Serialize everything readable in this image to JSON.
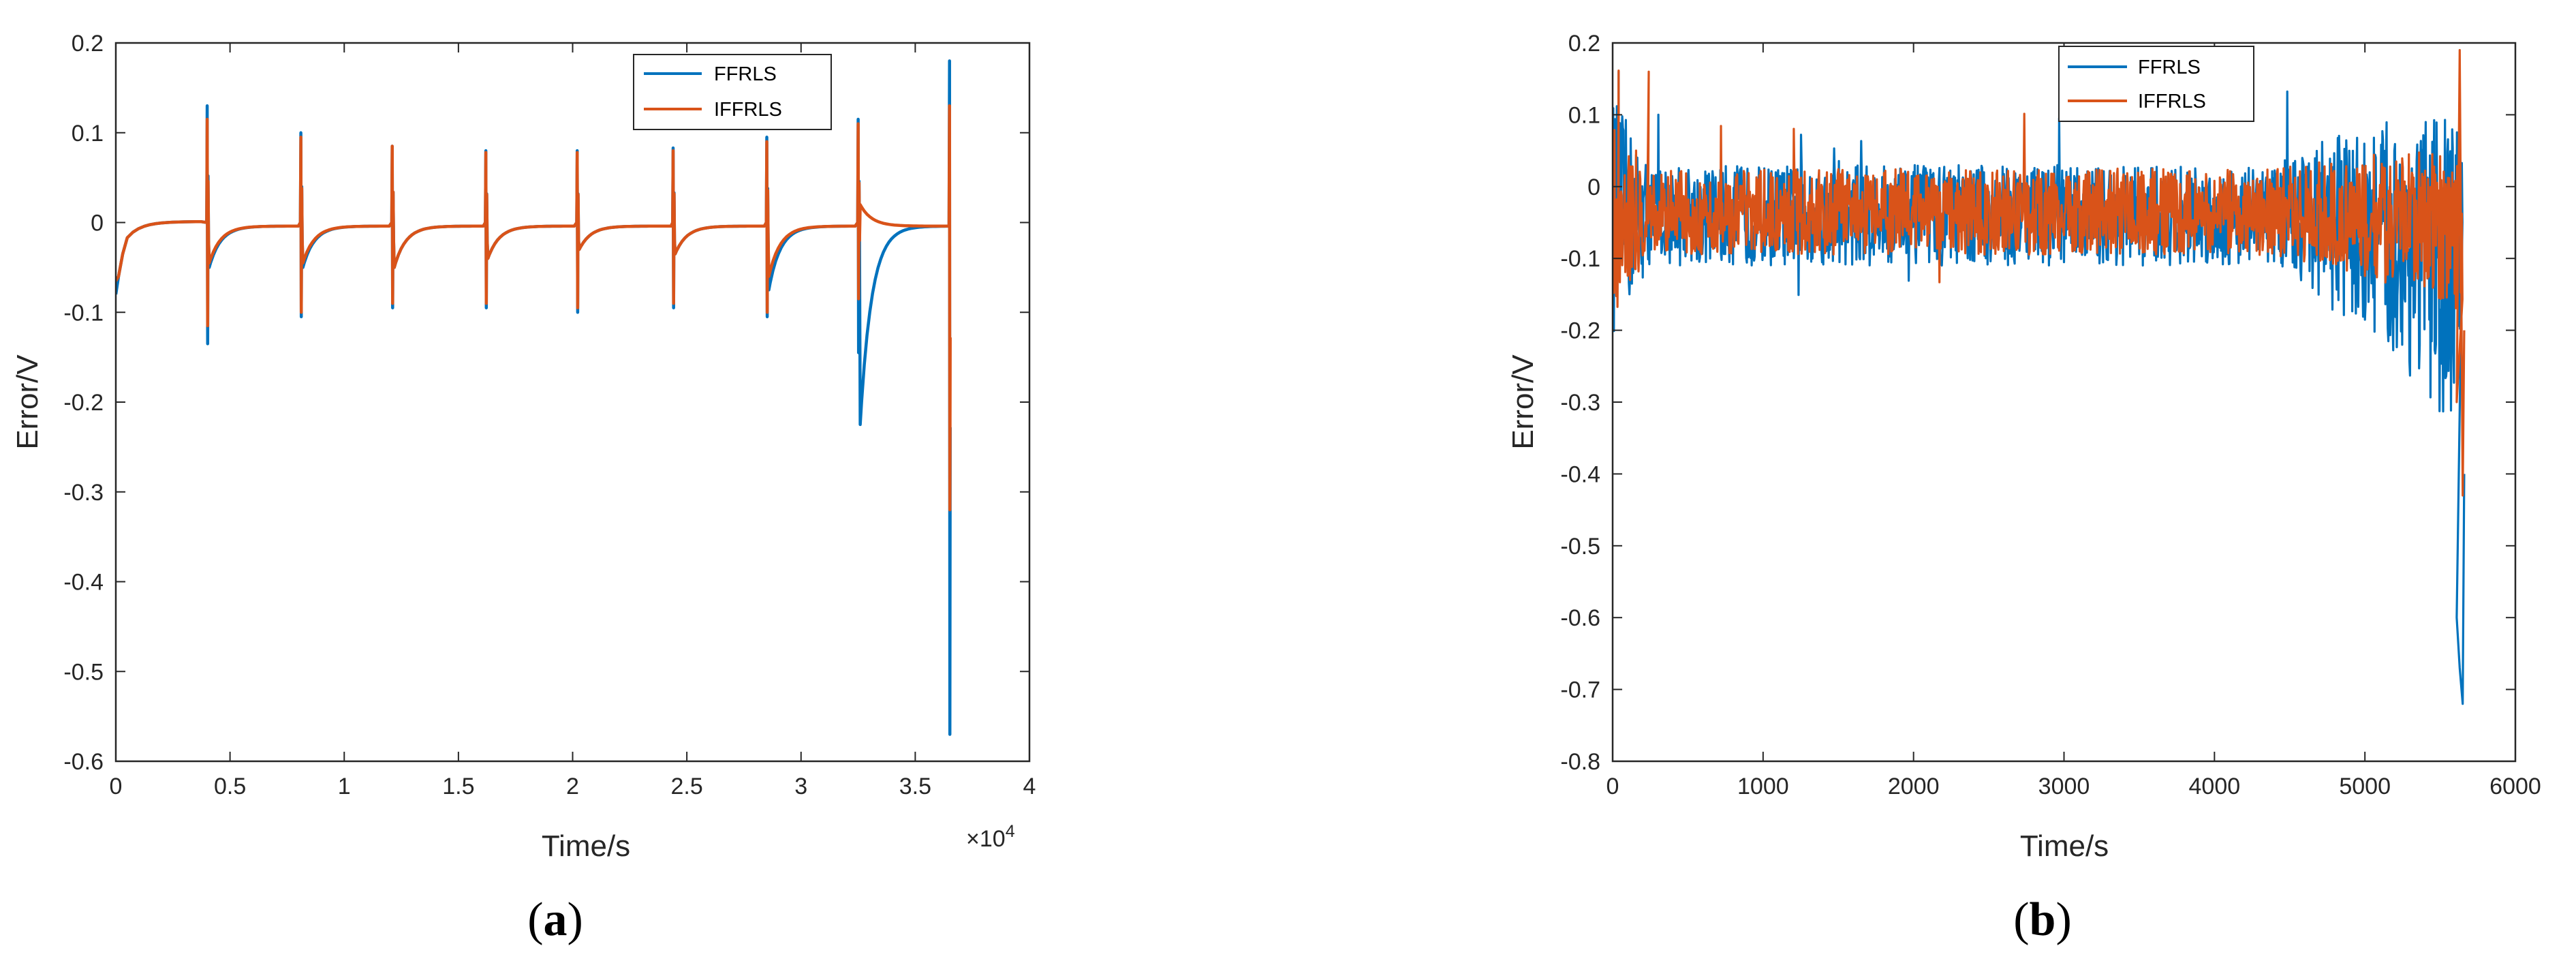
{
  "colors": {
    "ffrls": "#0072BD",
    "iffrls": "#D95319",
    "axis": "#262626"
  },
  "chart_data": [
    {
      "type": "line",
      "panel_label": "a",
      "xlabel": "Time/s",
      "ylabel": "Error/V",
      "x_exponent_label": "×10",
      "x_exponent_power": "4",
      "xlim": [
        0,
        40000
      ],
      "ylim": [
        -0.6,
        0.2
      ],
      "xticks": [
        0,
        5000,
        10000,
        15000,
        20000,
        25000,
        30000,
        35000,
        40000
      ],
      "xtick_labels": [
        "0",
        "0.5",
        "1",
        "1.5",
        "2",
        "2.5",
        "3",
        "3.5",
        "4"
      ],
      "yticks": [
        -0.6,
        -0.5,
        -0.4,
        -0.3,
        -0.2,
        -0.1,
        0,
        0.1,
        0.2
      ],
      "ytick_labels": [
        "-0.6",
        "-0.5",
        "-0.4",
        "-0.3",
        "-0.2",
        "-0.1",
        "0",
        "0.1",
        "0.2"
      ],
      "legend_position": "top-right",
      "pulse_times": [
        4000,
        8100,
        12100,
        16200,
        20200,
        24400,
        28500,
        32500
      ],
      "end_time": 36500,
      "series": [
        {
          "name": "FFRLS",
          "peaks_high": [
            0.13,
            0.1,
            0.085,
            0.08,
            0.08,
            0.083,
            0.095,
            0.115
          ],
          "peaks_low": [
            -0.135,
            -0.105,
            -0.095,
            -0.095,
            -0.1,
            -0.095,
            -0.105,
            -0.145
          ],
          "relax_min": [
            -0.05,
            -0.05,
            -0.05,
            -0.04,
            -0.03,
            -0.035,
            -0.075,
            -0.225
          ],
          "end_high": 0.18,
          "end_low": -0.57
        },
        {
          "name": "IFFRLS",
          "peaks_high": [
            0.115,
            0.095,
            0.085,
            0.078,
            0.078,
            0.08,
            0.09,
            0.11
          ],
          "peaks_low": [
            -0.115,
            -0.1,
            -0.09,
            -0.09,
            -0.095,
            -0.09,
            -0.1,
            -0.085
          ],
          "relax_min": [
            -0.045,
            -0.045,
            -0.05,
            -0.04,
            -0.03,
            -0.035,
            -0.06,
            0.02
          ],
          "end_high": 0.13,
          "end_low": -0.32
        }
      ]
    },
    {
      "type": "line",
      "panel_label": "b",
      "xlabel": "Time/s",
      "ylabel": "Error/V",
      "xlim": [
        0,
        6000
      ],
      "ylim": [
        -0.8,
        0.2
      ],
      "xticks": [
        0,
        1000,
        2000,
        3000,
        4000,
        5000,
        6000
      ],
      "xtick_labels": [
        "0",
        "1000",
        "2000",
        "3000",
        "4000",
        "5000",
        "6000"
      ],
      "yticks": [
        -0.8,
        -0.7,
        -0.6,
        -0.5,
        -0.4,
        -0.3,
        -0.2,
        -0.1,
        0,
        0.1,
        0.2
      ],
      "ytick_labels": [
        "-0.8",
        "-0.7",
        "-0.6",
        "-0.5",
        "-0.4",
        "-0.3",
        "-0.2",
        "-0.1",
        "0",
        "0.1",
        "0.2"
      ],
      "legend_position": "top-center",
      "end_time": 5650,
      "series": [
        {
          "name": "FFRLS",
          "mean": -0.04,
          "amplitude": 0.07,
          "max": 0.16,
          "min": -0.72
        },
        {
          "name": "IFFRLS",
          "mean": -0.035,
          "amplitude": 0.06,
          "max": 0.19,
          "min": -0.43
        }
      ]
    }
  ]
}
